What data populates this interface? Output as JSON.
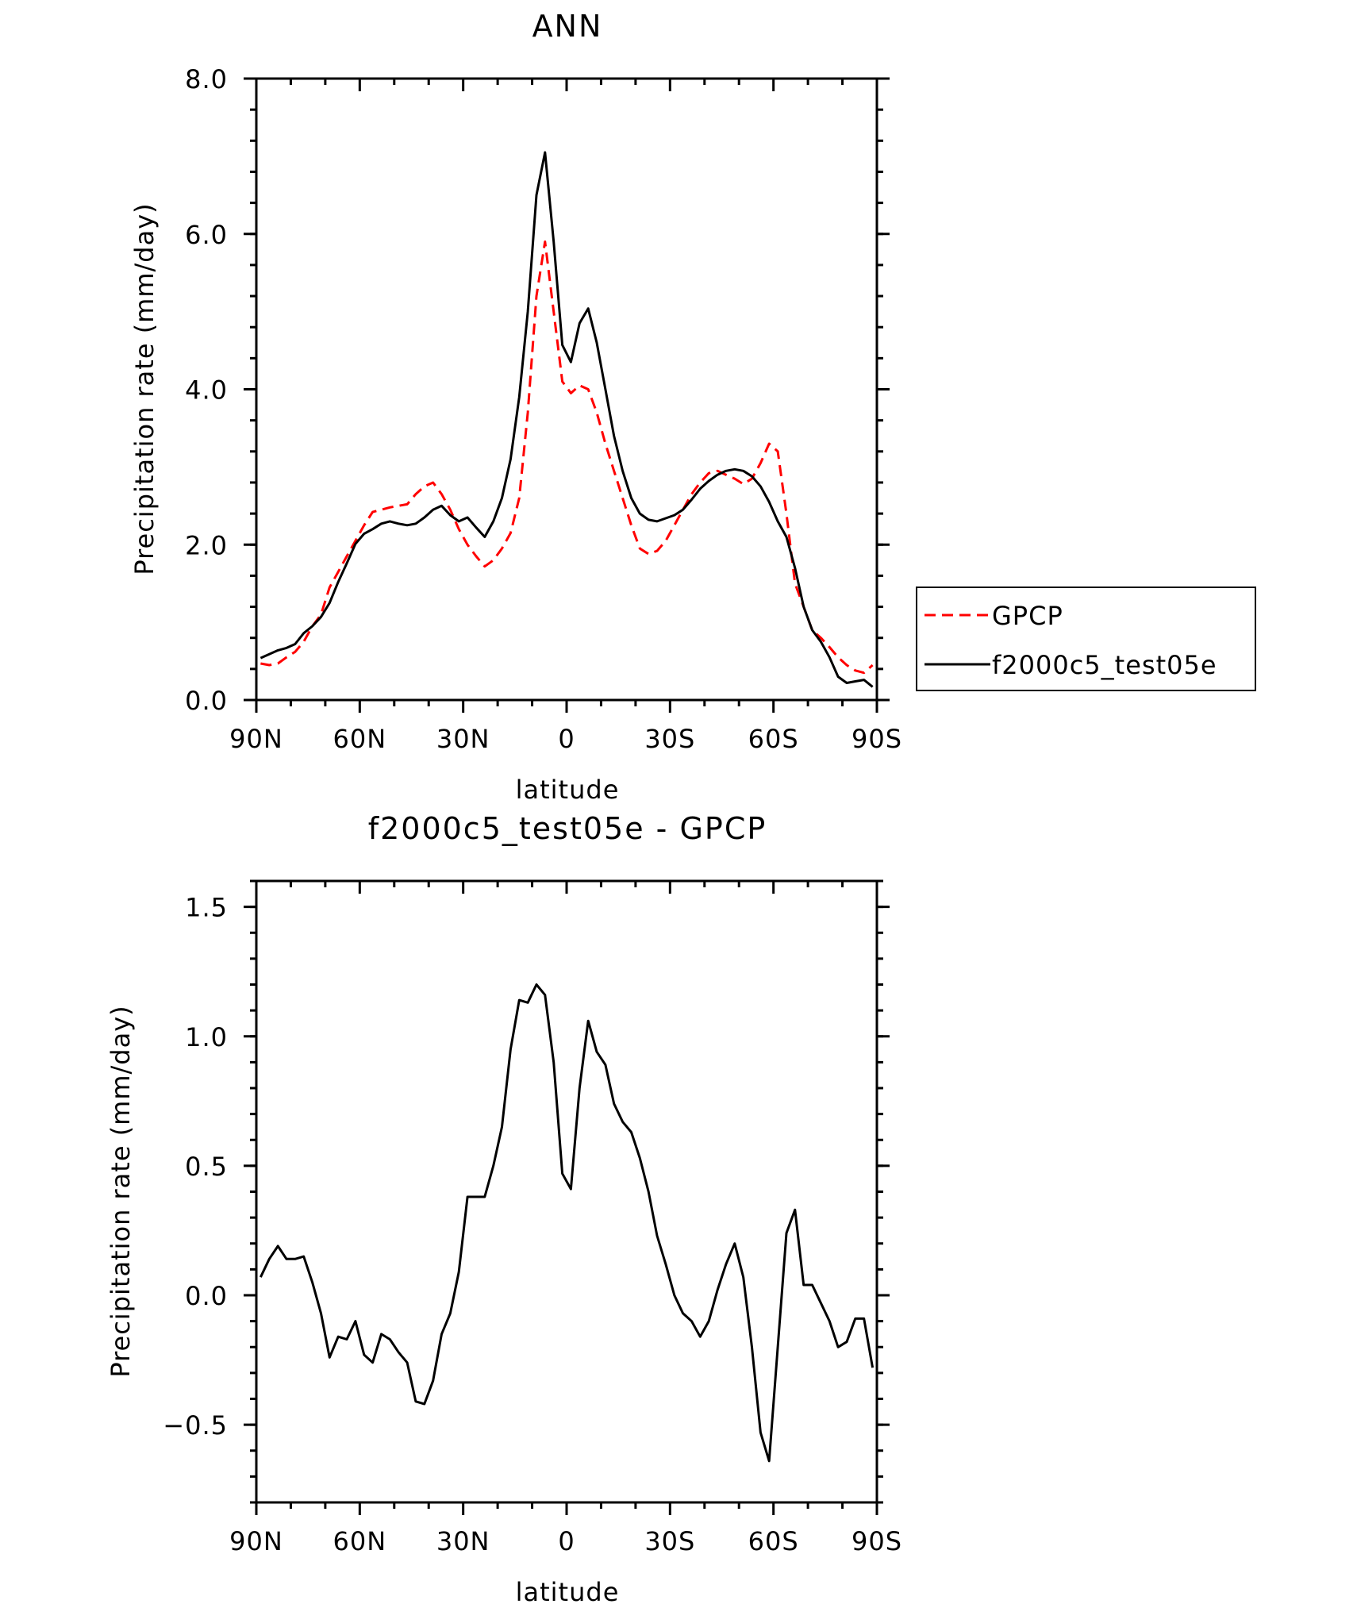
{
  "chart_data": [
    {
      "type": "line",
      "title": "ANN",
      "xlabel": "latitude",
      "ylabel": "Precipitation rate (mm/day)",
      "xlim": [
        -90,
        90
      ],
      "ylim": [
        0,
        8
      ],
      "x_ticks": [
        -90,
        -60,
        -30,
        0,
        30,
        60,
        90
      ],
      "x_tick_labels": [
        "90N",
        "60N",
        "30N",
        "0",
        "30S",
        "60S",
        "90S"
      ],
      "y_ticks": [
        0,
        2,
        4,
        6,
        8
      ],
      "y_tick_labels": [
        "0.0",
        "2.0",
        "4.0",
        "6.0",
        "8.0"
      ],
      "legend_position": "right",
      "series": [
        {
          "name": "GPCP",
          "color": "#ff0000",
          "style": "dashed",
          "x": [
            -88.75,
            -86.25,
            -83.75,
            -81.25,
            -78.75,
            -76.25,
            -73.75,
            -71.25,
            -68.75,
            -66.25,
            -63.75,
            -61.25,
            -58.75,
            -56.25,
            -53.75,
            -51.25,
            -48.75,
            -46.25,
            -43.75,
            -41.25,
            -38.75,
            -36.25,
            -33.75,
            -31.25,
            -28.75,
            -26.25,
            -23.75,
            -21.25,
            -18.75,
            -16.25,
            -13.75,
            -11.25,
            -8.75,
            -6.25,
            -3.75,
            -1.25,
            1.25,
            3.75,
            6.25,
            8.75,
            11.25,
            13.75,
            16.25,
            18.75,
            21.25,
            23.75,
            26.25,
            28.75,
            31.25,
            33.75,
            36.25,
            38.75,
            41.25,
            43.75,
            46.25,
            48.75,
            51.25,
            53.75,
            56.25,
            58.75,
            61.25,
            63.75,
            66.25,
            68.75,
            71.25,
            73.75,
            76.25,
            78.75,
            81.25,
            83.75,
            86.25,
            88.75
          ],
          "values": [
            0.47,
            0.45,
            0.47,
            0.55,
            0.62,
            0.75,
            0.95,
            1.1,
            1.45,
            1.65,
            1.85,
            2.05,
            2.25,
            2.42,
            2.45,
            2.48,
            2.5,
            2.52,
            2.65,
            2.75,
            2.8,
            2.65,
            2.45,
            2.2,
            2.0,
            1.85,
            1.72,
            1.8,
            1.95,
            2.15,
            2.6,
            3.7,
            5.2,
            5.9,
            5.0,
            4.1,
            3.95,
            4.05,
            4.0,
            3.7,
            3.3,
            2.95,
            2.6,
            2.25,
            1.95,
            1.88,
            1.92,
            2.05,
            2.25,
            2.45,
            2.65,
            2.8,
            2.92,
            2.95,
            2.9,
            2.85,
            2.78,
            2.85,
            3.05,
            3.3,
            3.2,
            2.4,
            1.5,
            1.2,
            0.9,
            0.8,
            0.68,
            0.55,
            0.45,
            0.38,
            0.35,
            0.45
          ]
        },
        {
          "name": "f2000c5_test05e",
          "color": "#000000",
          "style": "solid",
          "x": [
            -88.75,
            -86.25,
            -83.75,
            -81.25,
            -78.75,
            -76.25,
            -73.75,
            -71.25,
            -68.75,
            -66.25,
            -63.75,
            -61.25,
            -58.75,
            -56.25,
            -53.75,
            -51.25,
            -48.75,
            -46.25,
            -43.75,
            -41.25,
            -38.75,
            -36.25,
            -33.75,
            -31.25,
            -28.75,
            -26.25,
            -23.75,
            -21.25,
            -18.75,
            -16.25,
            -13.75,
            -11.25,
            -8.75,
            -6.25,
            -3.75,
            -1.25,
            1.25,
            3.75,
            6.25,
            8.75,
            11.25,
            13.75,
            16.25,
            18.75,
            21.25,
            23.75,
            26.25,
            28.75,
            31.25,
            33.75,
            36.25,
            38.75,
            41.25,
            43.75,
            46.25,
            48.75,
            51.25,
            53.75,
            56.25,
            58.75,
            61.25,
            63.75,
            66.25,
            68.75,
            71.25,
            73.75,
            76.25,
            78.75,
            81.25,
            83.75,
            86.25,
            88.75
          ],
          "values": [
            0.54,
            0.59,
            0.64,
            0.67,
            0.72,
            0.86,
            0.95,
            1.07,
            1.25,
            1.52,
            1.76,
            2.01,
            2.14,
            2.2,
            2.27,
            2.3,
            2.27,
            2.25,
            2.27,
            2.35,
            2.45,
            2.5,
            2.38,
            2.3,
            2.35,
            2.22,
            2.1,
            2.3,
            2.6,
            3.1,
            3.9,
            5.0,
            6.5,
            7.05,
            5.9,
            4.57,
            4.35,
            4.85,
            5.04,
            4.6,
            4.0,
            3.4,
            2.95,
            2.6,
            2.4,
            2.32,
            2.3,
            2.34,
            2.38,
            2.45,
            2.58,
            2.72,
            2.82,
            2.9,
            2.95,
            2.97,
            2.95,
            2.88,
            2.75,
            2.55,
            2.3,
            2.1,
            1.7,
            1.2,
            0.9,
            0.75,
            0.55,
            0.3,
            0.22,
            0.24,
            0.26,
            0.17
          ]
        }
      ]
    },
    {
      "type": "line",
      "title": "f2000c5_test05e - GPCP",
      "xlabel": "latitude",
      "ylabel": "Precipitation rate (mm/day)",
      "xlim": [
        -90,
        90
      ],
      "ylim": [
        -0.8,
        1.6
      ],
      "x_ticks": [
        -90,
        -60,
        -30,
        0,
        30,
        60,
        90
      ],
      "x_tick_labels": [
        "90N",
        "60N",
        "30N",
        "0",
        "30S",
        "60S",
        "90S"
      ],
      "y_ticks": [
        -0.5,
        0,
        0.5,
        1.0,
        1.5
      ],
      "y_tick_labels": [
        "−0.5",
        "0.0",
        "0.5",
        "1.0",
        "1.5"
      ],
      "series": [
        {
          "name": "f2000c5_test05e - GPCP",
          "color": "#000000",
          "style": "solid",
          "x": [
            -88.75,
            -86.25,
            -83.75,
            -81.25,
            -78.75,
            -76.25,
            -73.75,
            -71.25,
            -68.75,
            -66.25,
            -63.75,
            -61.25,
            -58.75,
            -56.25,
            -53.75,
            -51.25,
            -48.75,
            -46.25,
            -43.75,
            -41.25,
            -38.75,
            -36.25,
            -33.75,
            -31.25,
            -28.75,
            -26.25,
            -23.75,
            -21.25,
            -18.75,
            -16.25,
            -13.75,
            -11.25,
            -8.75,
            -6.25,
            -3.75,
            -1.25,
            1.25,
            3.75,
            6.25,
            8.75,
            11.25,
            13.75,
            16.25,
            18.75,
            21.25,
            23.75,
            26.25,
            28.75,
            31.25,
            33.75,
            36.25,
            38.75,
            41.25,
            43.75,
            46.25,
            48.75,
            51.25,
            53.75,
            56.25,
            58.75,
            61.25,
            63.75,
            66.25,
            68.75,
            71.25,
            73.75,
            76.25,
            78.75,
            81.25,
            83.75,
            86.25,
            88.75
          ],
          "values": [
            0.07,
            0.14,
            0.19,
            0.14,
            0.14,
            0.15,
            0.05,
            -0.07,
            -0.24,
            -0.16,
            -0.17,
            -0.1,
            -0.23,
            -0.26,
            -0.15,
            -0.17,
            -0.22,
            -0.26,
            -0.41,
            -0.42,
            -0.33,
            -0.15,
            -0.07,
            0.09,
            0.38,
            0.38,
            0.38,
            0.5,
            0.65,
            0.95,
            1.14,
            1.13,
            1.2,
            1.16,
            0.9,
            0.47,
            0.41,
            0.8,
            1.06,
            0.94,
            0.89,
            0.74,
            0.67,
            0.63,
            0.53,
            0.4,
            0.23,
            0.12,
            0.0,
            -0.07,
            -0.1,
            -0.16,
            -0.1,
            0.02,
            0.12,
            0.2,
            0.07,
            -0.2,
            -0.53,
            -0.64,
            -0.2,
            0.24,
            0.33,
            0.04,
            0.04,
            -0.03,
            -0.1,
            -0.2,
            -0.18,
            -0.09,
            -0.09,
            -0.28
          ]
        }
      ]
    }
  ]
}
